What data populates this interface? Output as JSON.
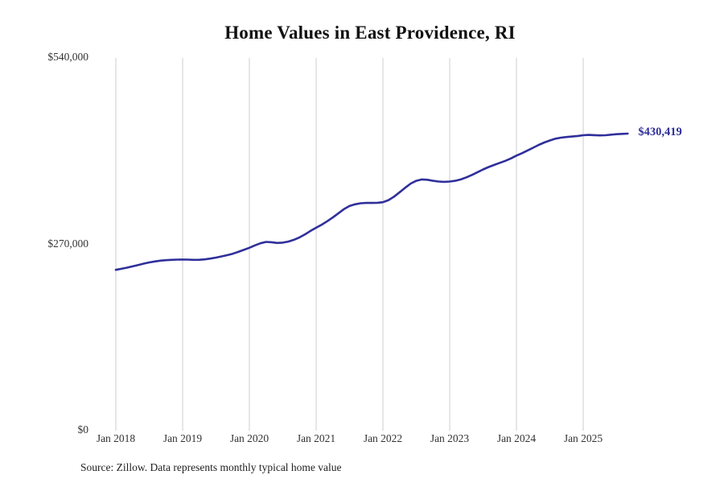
{
  "chart_data": {
    "type": "line",
    "title": "Home Values in East Providence, RI",
    "xlabel": "",
    "ylabel": "",
    "ylim": [
      0,
      540000
    ],
    "grid": "vertical-only",
    "legend": "none",
    "line_color": "#2f2f9b",
    "grid_color": "#cccccc",
    "end_label": "$430,419",
    "end_value": 430419,
    "yticks": [
      {
        "label": "$540,000",
        "value": 540000
      },
      {
        "label": "$270,000",
        "value": 270000
      },
      {
        "label": "$0",
        "value": 0
      }
    ],
    "xticks": [
      {
        "label": "Jan 2018",
        "month": "2018-01"
      },
      {
        "label": "Jan 2019",
        "month": "2019-01"
      },
      {
        "label": "Jan 2020",
        "month": "2020-01"
      },
      {
        "label": "Jan 2021",
        "month": "2021-01"
      },
      {
        "label": "Jan 2022",
        "month": "2022-01"
      },
      {
        "label": "Jan 2023",
        "month": "2023-01"
      },
      {
        "label": "Jan 2024",
        "month": "2024-01"
      },
      {
        "label": "Jan 2025",
        "month": "2025-01"
      }
    ],
    "months": [
      "2018-01",
      "2018-02",
      "2018-03",
      "2018-04",
      "2018-05",
      "2018-06",
      "2018-07",
      "2018-08",
      "2018-09",
      "2018-10",
      "2018-11",
      "2018-12",
      "2019-01",
      "2019-02",
      "2019-03",
      "2019-04",
      "2019-05",
      "2019-06",
      "2019-07",
      "2019-08",
      "2019-09",
      "2019-10",
      "2019-11",
      "2019-12",
      "2020-01",
      "2020-02",
      "2020-03",
      "2020-04",
      "2020-05",
      "2020-06",
      "2020-07",
      "2020-08",
      "2020-09",
      "2020-10",
      "2020-11",
      "2020-12",
      "2021-01",
      "2021-02",
      "2021-03",
      "2021-04",
      "2021-05",
      "2021-06",
      "2021-07",
      "2021-08",
      "2021-09",
      "2021-10",
      "2021-11",
      "2021-12",
      "2022-01",
      "2022-02",
      "2022-03",
      "2022-04",
      "2022-05",
      "2022-06",
      "2022-07",
      "2022-08",
      "2022-09",
      "2022-10",
      "2022-11",
      "2022-12",
      "2023-01",
      "2023-02",
      "2023-03",
      "2023-04",
      "2023-05",
      "2023-06",
      "2023-07",
      "2023-08",
      "2023-09",
      "2023-10",
      "2023-11",
      "2023-12",
      "2024-01",
      "2024-02",
      "2024-03",
      "2024-04",
      "2024-05",
      "2024-06",
      "2024-07",
      "2024-08",
      "2024-09",
      "2024-10",
      "2024-11",
      "2024-12",
      "2025-01",
      "2025-02",
      "2025-03",
      "2025-04",
      "2025-05",
      "2025-06",
      "2025-07",
      "2025-08",
      "2025-09"
    ],
    "values": [
      233000,
      234500,
      236200,
      238000,
      240000,
      242000,
      243800,
      245200,
      246300,
      247000,
      247500,
      247800,
      248000,
      247800,
      247500,
      247600,
      248200,
      249300,
      250800,
      252500,
      254300,
      256400,
      259000,
      262000,
      265000,
      268500,
      271500,
      273500,
      273000,
      272000,
      272500,
      274000,
      276500,
      280000,
      284500,
      289500,
      294000,
      298500,
      303500,
      309000,
      315000,
      321000,
      325500,
      328000,
      329500,
      330000,
      330000,
      330200,
      331000,
      334000,
      339000,
      345500,
      352000,
      358000,
      362000,
      364000,
      363500,
      362000,
      361000,
      360500,
      361000,
      362000,
      364000,
      367000,
      370500,
      374500,
      378500,
      382000,
      385000,
      388000,
      391000,
      394500,
      398500,
      402000,
      406000,
      410000,
      414000,
      417500,
      420500,
      423000,
      424500,
      425500,
      426200,
      427000,
      428000,
      428500,
      428200,
      427800,
      428000,
      428800,
      429500,
      430000,
      430419
    ]
  },
  "source": {
    "text": "Source: Zillow. Data represents monthly typical home value"
  }
}
